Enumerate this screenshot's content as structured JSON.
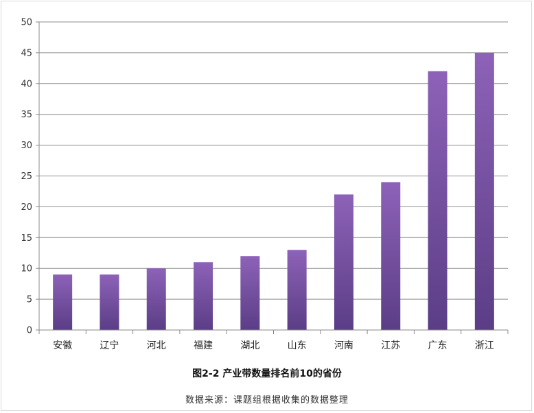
{
  "chart_data": {
    "type": "bar",
    "title": "图2-2 产业带数量排名前10的省份",
    "source": "数据来源：课题组根据收集的数据整理",
    "categories": [
      "安徽",
      "辽宁",
      "河北",
      "福建",
      "湖北",
      "山东",
      "河南",
      "江苏",
      "广东",
      "浙江"
    ],
    "values": [
      9,
      9,
      10,
      11,
      12,
      13,
      22,
      24,
      42,
      45
    ],
    "ylim": [
      0,
      50
    ],
    "yticks": [
      0,
      5,
      10,
      15,
      20,
      25,
      30,
      35,
      40,
      45,
      50
    ],
    "grid": true,
    "legend": "none",
    "bar_color_top": "#8d62b8",
    "bar_color_bottom": "#5b3d86"
  }
}
